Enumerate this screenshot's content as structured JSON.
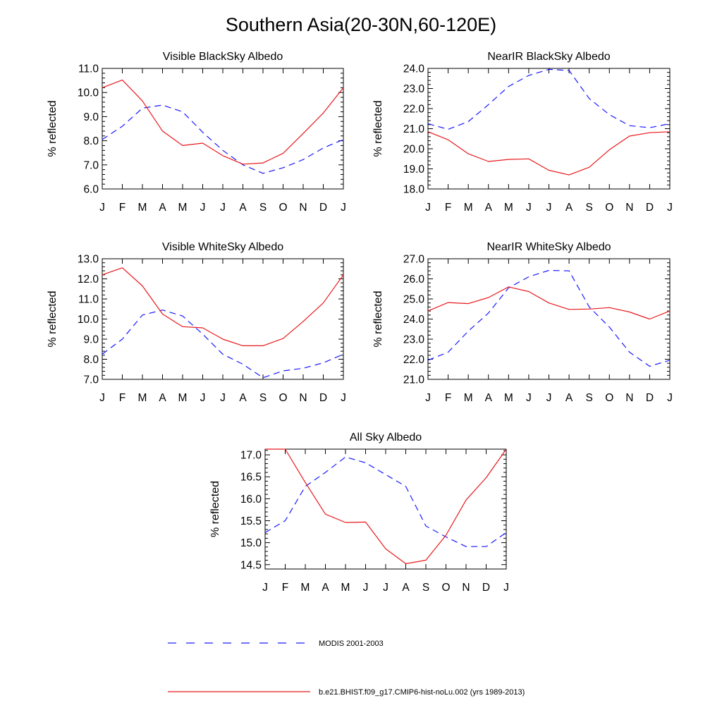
{
  "page": {
    "title": "Southern Asia(20-30N,60-120E)"
  },
  "legend": {
    "items": [
      {
        "label": "MODIS 2001-2003",
        "color": "#1a1aff",
        "style": "dashed"
      },
      {
        "label": "b.e21.BHIST.f09_g17.CMIP6-hist-noLu.002 (yrs 1989-2013)",
        "color": "#e8191c",
        "style": "solid"
      }
    ]
  },
  "chart_data": [
    {
      "type": "line",
      "title": "Visible BlackSky Albedo",
      "xlabel": "",
      "ylabel": "% reflected",
      "categories": [
        "J",
        "F",
        "M",
        "A",
        "M",
        "J",
        "J",
        "A",
        "S",
        "O",
        "N",
        "D",
        "J"
      ],
      "ylim": [
        6.0,
        11.0
      ],
      "yticks": [
        "6.0",
        "7.0",
        "8.0",
        "9.0",
        "10.0",
        "11.0"
      ],
      "series": [
        {
          "name": "MODIS 2001-2003",
          "values": [
            8.05,
            8.6,
            9.35,
            9.48,
            9.2,
            8.35,
            7.6,
            7.0,
            6.65,
            6.88,
            7.22,
            7.7,
            8.05
          ]
        },
        {
          "name": "b.e21.BHIST.f09_g17.CMIP6-hist-noLu.002 (yrs 1989-2013)",
          "values": [
            10.2,
            10.52,
            9.65,
            8.4,
            7.8,
            7.9,
            7.38,
            7.03,
            7.08,
            7.48,
            8.3,
            9.15,
            10.2
          ]
        }
      ]
    },
    {
      "type": "line",
      "title": "NearIR BlackSky Albedo",
      "xlabel": "",
      "ylabel": "% reflected",
      "categories": [
        "J",
        "F",
        "M",
        "A",
        "M",
        "J",
        "J",
        "A",
        "S",
        "O",
        "N",
        "D",
        "J"
      ],
      "ylim": [
        18.0,
        24.0
      ],
      "yticks": [
        "18.0",
        "19.0",
        "20.0",
        "21.0",
        "22.0",
        "23.0",
        "24.0"
      ],
      "series": [
        {
          "name": "MODIS 2001-2003",
          "values": [
            21.25,
            20.97,
            21.35,
            22.2,
            23.1,
            23.65,
            23.95,
            23.9,
            22.5,
            21.7,
            21.15,
            21.05,
            21.25
          ]
        },
        {
          "name": "b.e21.BHIST.f09_g17.CMIP6-hist-noLu.002 (yrs 1989-2013)",
          "values": [
            20.85,
            20.45,
            19.75,
            19.37,
            19.47,
            19.5,
            18.93,
            18.7,
            19.08,
            19.95,
            20.63,
            20.8,
            20.85
          ]
        }
      ]
    },
    {
      "type": "line",
      "title": "Visible WhiteSky Albedo",
      "xlabel": "",
      "ylabel": "% reflected",
      "categories": [
        "J",
        "F",
        "M",
        "A",
        "M",
        "J",
        "J",
        "A",
        "S",
        "O",
        "N",
        "D",
        "J"
      ],
      "ylim": [
        7.0,
        13.0
      ],
      "yticks": [
        "7.0",
        "8.0",
        "9.0",
        "10.0",
        "11.0",
        "12.0",
        "13.0"
      ],
      "series": [
        {
          "name": "MODIS 2001-2003",
          "values": [
            8.25,
            9.0,
            10.2,
            10.45,
            10.15,
            9.25,
            8.25,
            7.75,
            7.08,
            7.42,
            7.55,
            7.82,
            8.25
          ]
        },
        {
          "name": "b.e21.BHIST.f09_g17.CMIP6-hist-noLu.002 (yrs 1989-2013)",
          "values": [
            12.2,
            12.55,
            11.65,
            10.25,
            9.62,
            9.56,
            9.0,
            8.67,
            8.67,
            9.03,
            9.88,
            10.8,
            12.2
          ]
        }
      ]
    },
    {
      "type": "line",
      "title": "NearIR WhiteSky Albedo",
      "xlabel": "",
      "ylabel": "% reflected",
      "categories": [
        "J",
        "F",
        "M",
        "A",
        "M",
        "J",
        "J",
        "A",
        "S",
        "O",
        "N",
        "D",
        "J"
      ],
      "ylim": [
        21.0,
        27.0
      ],
      "yticks": [
        "21.0",
        "22.0",
        "23.0",
        "24.0",
        "25.0",
        "26.0",
        "27.0"
      ],
      "series": [
        {
          "name": "MODIS 2001-2003",
          "values": [
            21.95,
            22.35,
            23.4,
            24.3,
            25.55,
            26.1,
            26.42,
            26.4,
            24.6,
            23.6,
            22.35,
            21.65,
            21.95
          ]
        },
        {
          "name": "b.e21.BHIST.f09_g17.CMIP6-hist-noLu.002 (yrs 1989-2013)",
          "values": [
            24.4,
            24.82,
            24.77,
            25.07,
            25.6,
            25.37,
            24.8,
            24.48,
            24.5,
            24.57,
            24.35,
            24.0,
            24.4
          ]
        }
      ]
    },
    {
      "type": "line",
      "title": "All Sky Albedo",
      "xlabel": "",
      "ylabel": "% reflected",
      "categories": [
        "J",
        "F",
        "M",
        "A",
        "M",
        "J",
        "J",
        "A",
        "S",
        "O",
        "N",
        "D",
        "J"
      ],
      "ylim": [
        14.4,
        17.13
      ],
      "yticks": [
        "14.5",
        "15.0",
        "15.5",
        "16.0",
        "16.5",
        "17.0"
      ],
      "series": [
        {
          "name": "MODIS 2001-2003",
          "values": [
            15.23,
            15.5,
            16.28,
            16.6,
            16.95,
            16.82,
            16.55,
            16.28,
            15.38,
            15.13,
            14.91,
            14.91,
            15.23
          ]
        },
        {
          "name": "b.e21.BHIST.f09_g17.CMIP6-hist-noLu.002 (yrs 1989-2013)",
          "values": [
            17.13,
            17.13,
            16.37,
            15.65,
            15.46,
            15.47,
            14.86,
            14.52,
            14.6,
            15.17,
            15.97,
            16.48,
            17.13
          ]
        }
      ]
    }
  ]
}
